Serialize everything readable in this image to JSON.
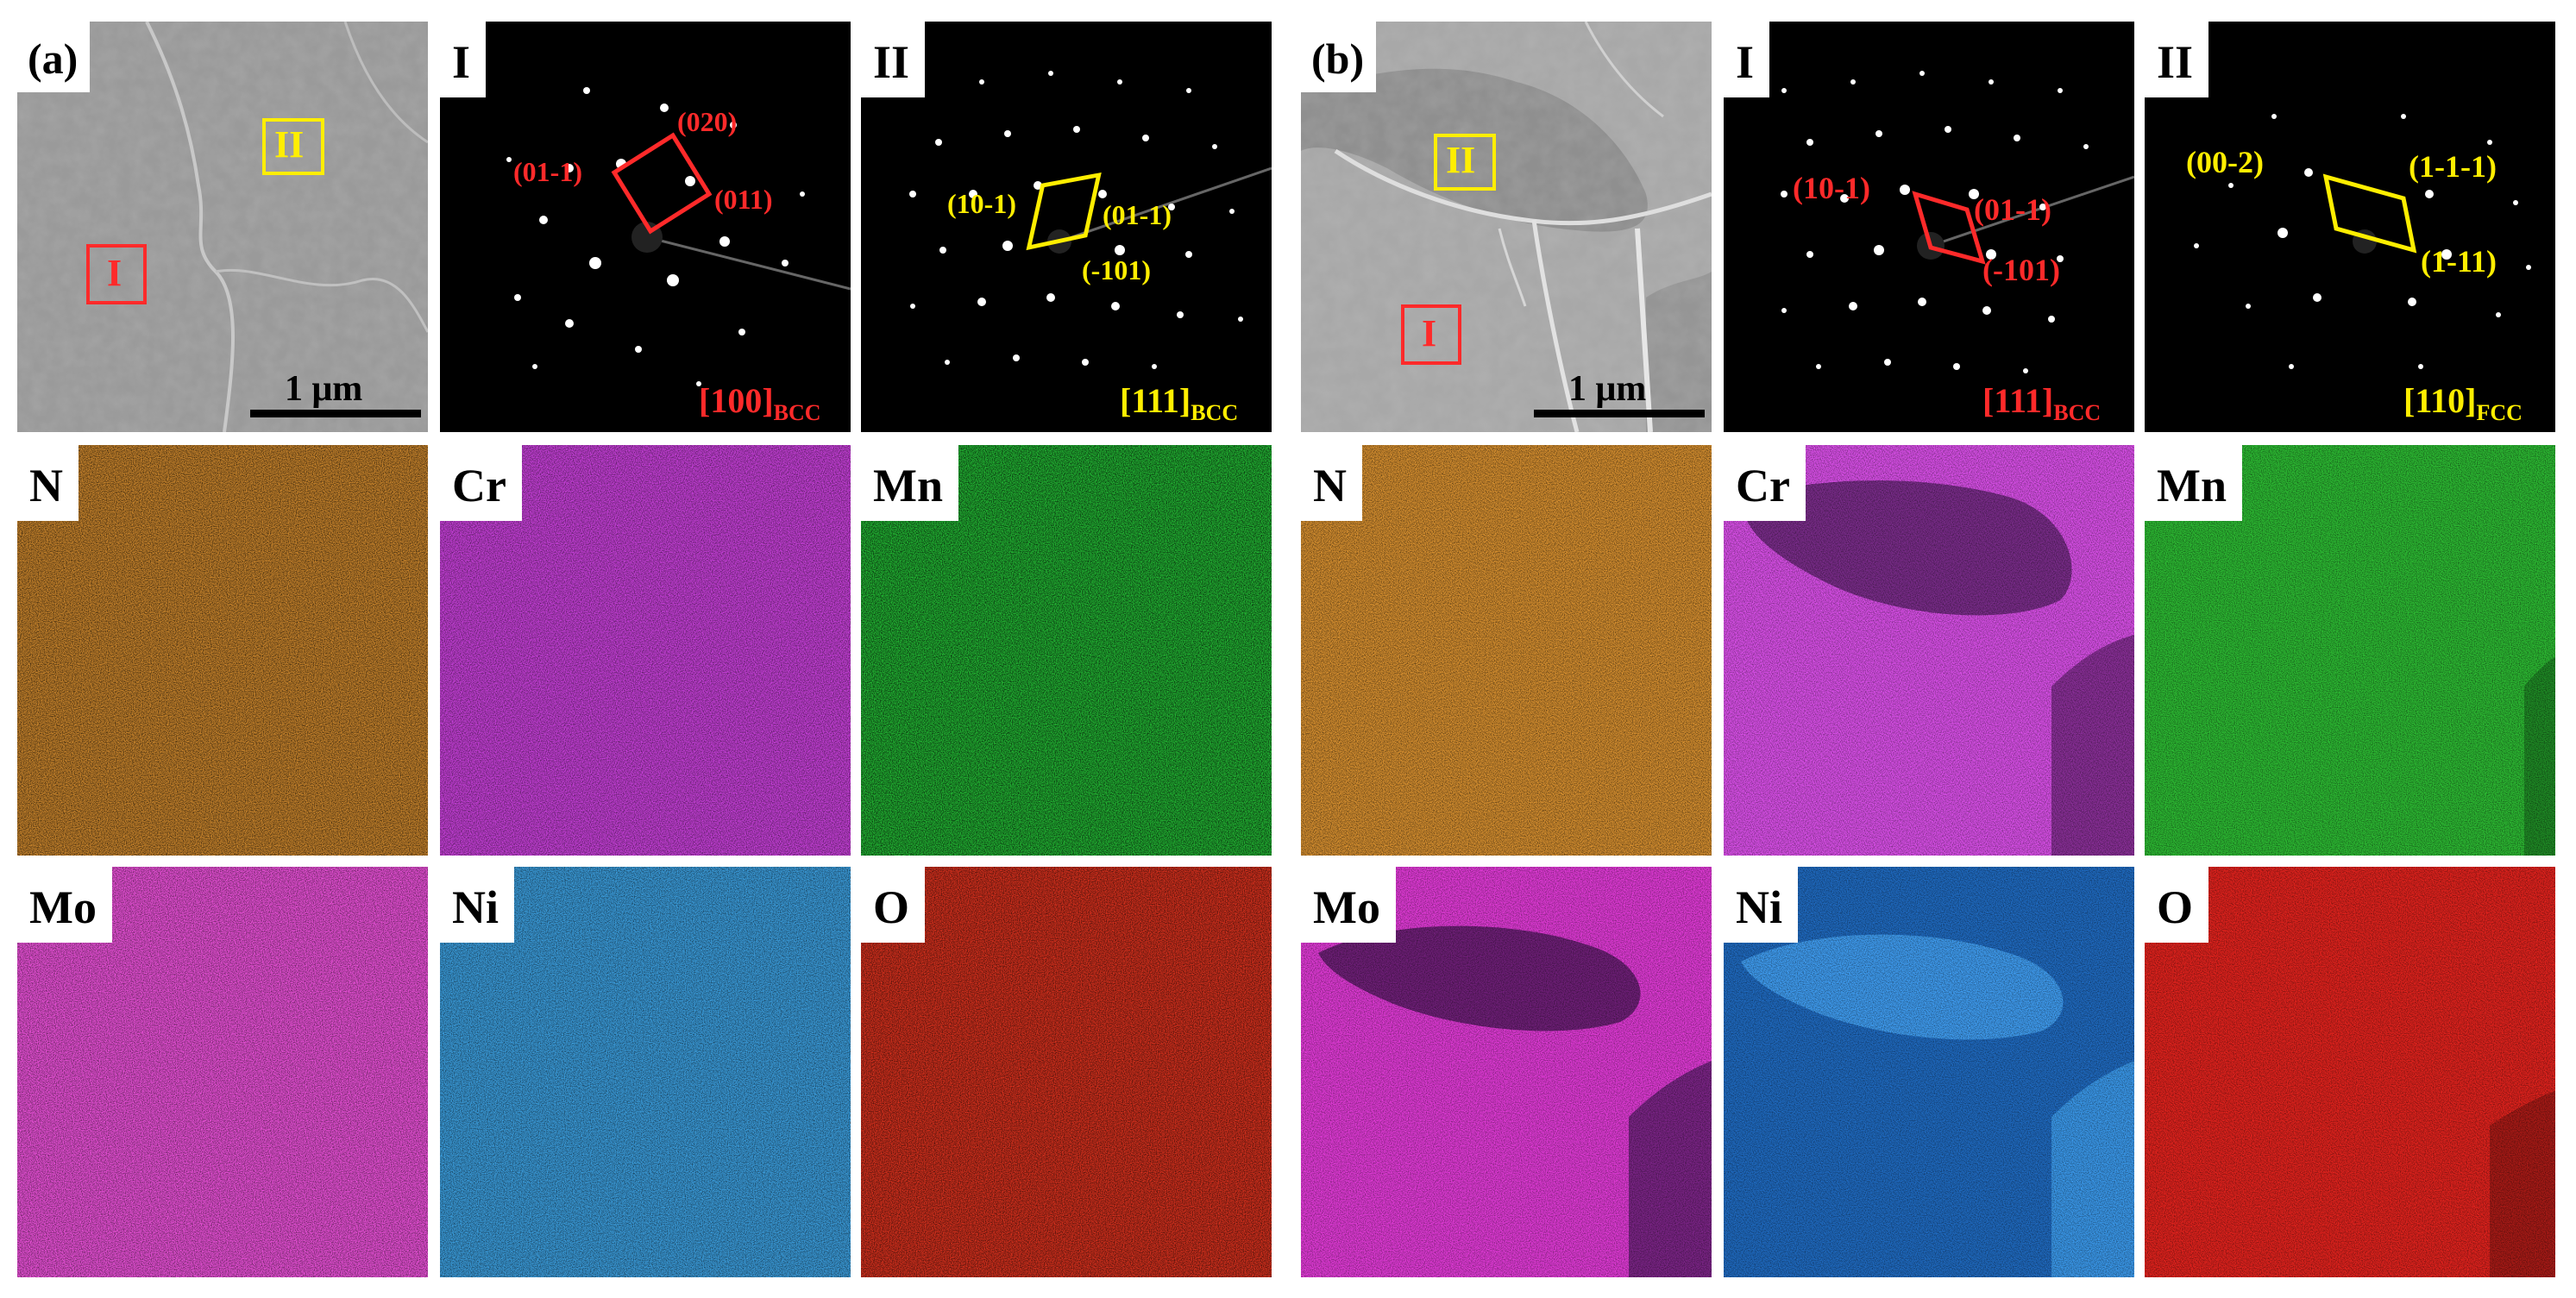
{
  "figure": {
    "a": {
      "tag": "(a)",
      "sem": {
        "regions": [
          "I",
          "II"
        ],
        "scale_bar": "1 μm"
      },
      "sad_I": {
        "tag": "I",
        "spots": [
          "(01-1)",
          "(020)",
          "(011)"
        ],
        "zone": "[100]",
        "zone_sub": "BCC"
      },
      "sad_II": {
        "tag": "II",
        "spots": [
          "(10-1)",
          "(01-1)",
          "(-101)"
        ],
        "zone": "[111]",
        "zone_sub": "BCC"
      },
      "maps": [
        "N",
        "Cr",
        "Mn",
        "Mo",
        "Ni",
        "O"
      ]
    },
    "b": {
      "tag": "(b)",
      "sem": {
        "regions": [
          "II",
          "I"
        ],
        "scale_bar": "1 μm"
      },
      "sad_I": {
        "tag": "I",
        "spots": [
          "(10-1)",
          "(01-1)",
          "(-101)"
        ],
        "zone": "[111]",
        "zone_sub": "BCC"
      },
      "sad_II": {
        "tag": "II",
        "spots": [
          "(00-2)",
          "(1-1-1)",
          "(1-11)"
        ],
        "zone": "[110]",
        "zone_sub": "FCC"
      },
      "maps": [
        "N",
        "Cr",
        "Mn",
        "Mo",
        "Ni",
        "O"
      ]
    }
  },
  "colors": {
    "region_red": "#ff2a2a",
    "region_yellow": "#ffee00",
    "N": "#c8842c",
    "Cr": "#c43fd6",
    "Mn": "#23b834",
    "Mo": "#e54fd4",
    "Ni": "#3a9ad8",
    "O": "#d4301d"
  }
}
